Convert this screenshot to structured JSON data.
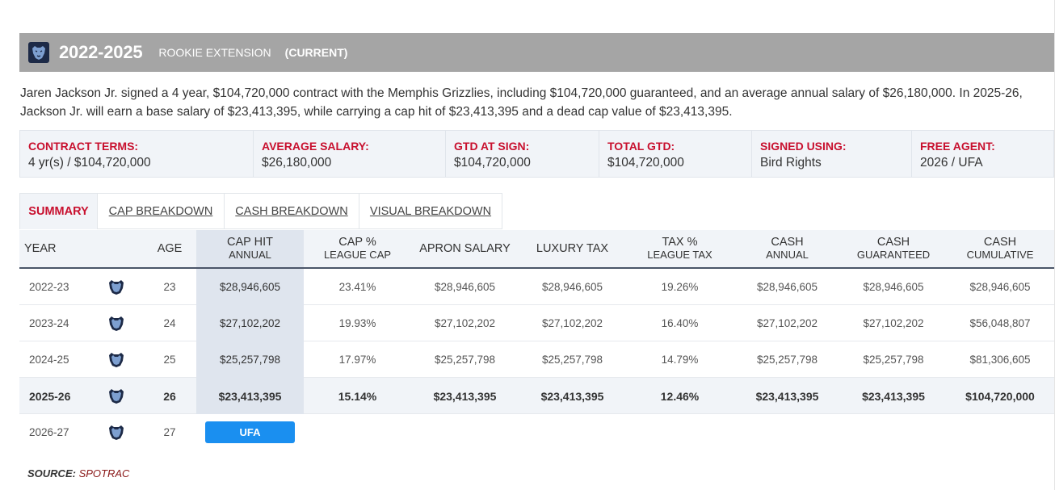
{
  "header": {
    "years": "2022-2025",
    "contract_type": "ROOKIE EXTENSION",
    "status": "(CURRENT)",
    "logo_icon": "grizzlies-logo-icon"
  },
  "summary_text": "Jaren Jackson Jr. signed a 4 year, $104,720,000 contract with the Memphis Grizzlies, including $104,720,000 guaranteed, and an average annual salary of $26,180,000. In 2025-26, Jackson Jr. will earn a base salary of $23,413,395, while carrying a cap hit of $23,413,395 and a dead cap value of $23,413,395.",
  "terms": [
    {
      "label": "CONTRACT TERMS:",
      "value": "4 yr(s) / $104,720,000"
    },
    {
      "label": "AVERAGE SALARY:",
      "value": "$26,180,000"
    },
    {
      "label": "GTD AT SIGN:",
      "value": "$104,720,000"
    },
    {
      "label": "TOTAL GTD:",
      "value": "$104,720,000"
    },
    {
      "label": "SIGNED USING:",
      "value": "Bird Rights"
    },
    {
      "label": "FREE AGENT:",
      "value": "2026 / UFA"
    }
  ],
  "tabs": [
    {
      "label": "SUMMARY",
      "active": true
    },
    {
      "label": "CAP BREAKDOWN",
      "active": false
    },
    {
      "label": "CASH BREAKDOWN",
      "active": false
    },
    {
      "label": "VISUAL BREAKDOWN",
      "active": false
    }
  ],
  "columns": [
    {
      "line1": "YEAR",
      "line2": ""
    },
    {
      "line1": "",
      "line2": ""
    },
    {
      "line1": "AGE",
      "line2": ""
    },
    {
      "line1": "CAP HIT",
      "line2": "ANNUAL"
    },
    {
      "line1": "CAP %",
      "line2": "LEAGUE CAP"
    },
    {
      "line1": "APRON SALARY",
      "line2": ""
    },
    {
      "line1": "LUXURY TAX",
      "line2": ""
    },
    {
      "line1": "TAX %",
      "line2": "LEAGUE TAX"
    },
    {
      "line1": "CASH",
      "line2": "ANNUAL"
    },
    {
      "line1": "CASH",
      "line2": "GUARANTEED"
    },
    {
      "line1": "CASH",
      "line2": "CUMULATIVE"
    }
  ],
  "rows": [
    {
      "year": "2022-23",
      "age": "23",
      "cap_hit": "$28,946,605",
      "cap_pct": "23.41%",
      "apron": "$28,946,605",
      "lux_tax": "$28,946,605",
      "tax_pct": "19.26%",
      "cash_annual": "$28,946,605",
      "cash_gtd": "$28,946,605",
      "cash_cum": "$28,946,605"
    },
    {
      "year": "2023-24",
      "age": "24",
      "cap_hit": "$27,102,202",
      "cap_pct": "19.93%",
      "apron": "$27,102,202",
      "lux_tax": "$27,102,202",
      "tax_pct": "16.40%",
      "cash_annual": "$27,102,202",
      "cash_gtd": "$27,102,202",
      "cash_cum": "$56,048,807"
    },
    {
      "year": "2024-25",
      "age": "25",
      "cap_hit": "$25,257,798",
      "cap_pct": "17.97%",
      "apron": "$25,257,798",
      "lux_tax": "$25,257,798",
      "tax_pct": "14.79%",
      "cash_annual": "$25,257,798",
      "cash_gtd": "$25,257,798",
      "cash_cum": "$81,306,605"
    },
    {
      "year": "2025-26",
      "age": "26",
      "cap_hit": "$23,413,395",
      "cap_pct": "15.14%",
      "apron": "$23,413,395",
      "lux_tax": "$23,413,395",
      "tax_pct": "12.46%",
      "cash_annual": "$23,413,395",
      "cash_gtd": "$23,413,395",
      "cash_cum": "$104,720,000"
    }
  ],
  "fa_row": {
    "year": "2026-27",
    "age": "27",
    "badge": "UFA"
  },
  "colors": {
    "accent_red": "#c8102e",
    "ufa_blue": "#1a8ff0",
    "header_gray": "#a5a5a5"
  },
  "source": {
    "label": "SOURCE:",
    "brand": "SPOTRAC"
  }
}
